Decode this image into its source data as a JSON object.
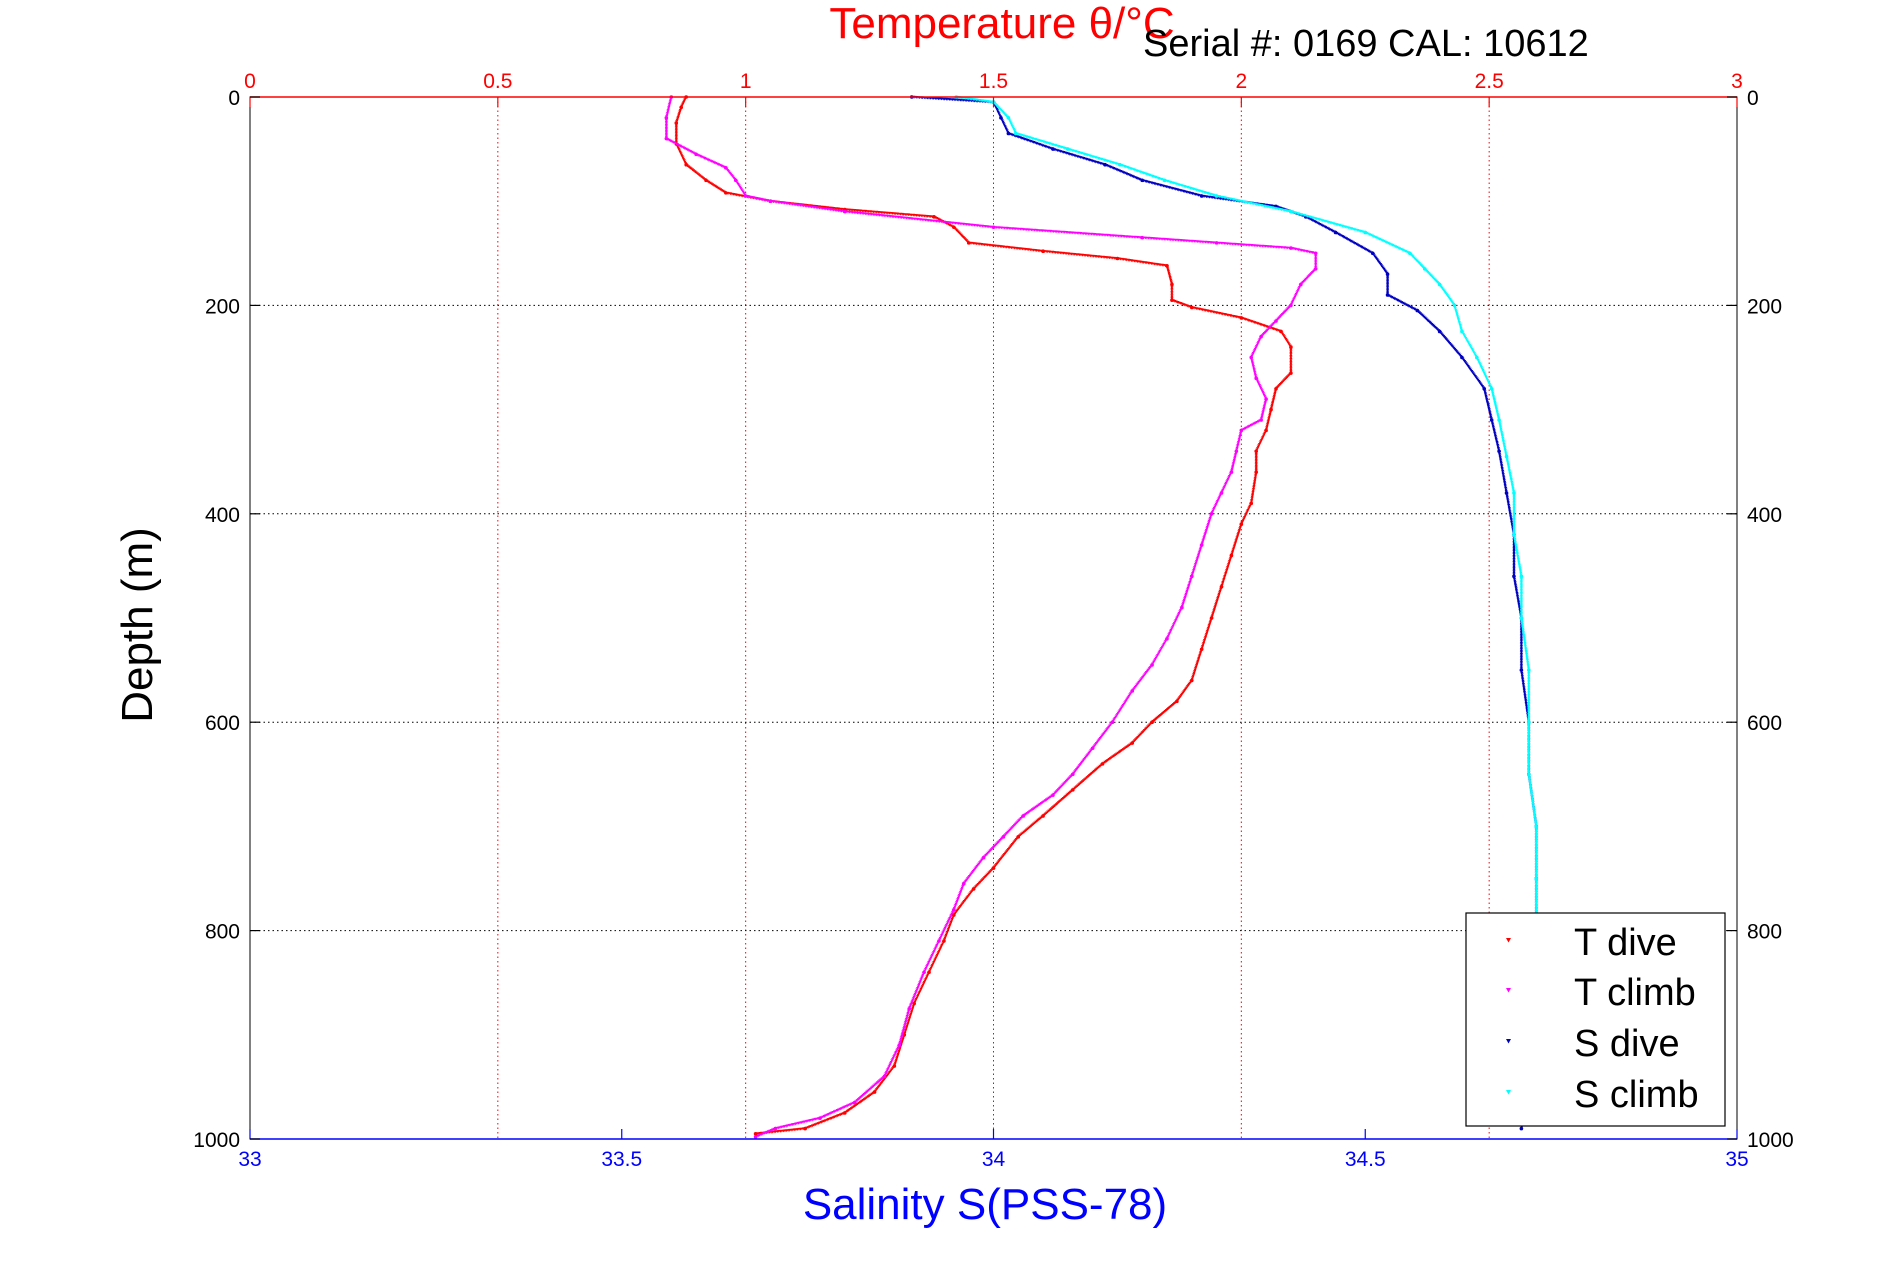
{
  "chart_data": {
    "type": "scatter",
    "annotation": "Serial #: 0169 CAL: 10612",
    "axes": {
      "temperature_top": {
        "label": "Temperature θ/°C",
        "range": [
          0,
          3
        ],
        "ticks": [
          0,
          0.5,
          1,
          1.5,
          2,
          2.5,
          3
        ],
        "tick_labels": [
          "0",
          "0.5",
          "1",
          "1.5",
          "2",
          "2.5",
          "3"
        ],
        "color": "#ff0000"
      },
      "salinity_bottom": {
        "label": "Salinity S(PSS-78)",
        "range": [
          33,
          35
        ],
        "ticks": [
          33,
          33.5,
          34,
          34.5,
          35
        ],
        "tick_labels": [
          "33",
          "33.5",
          "34",
          "34.5",
          "35"
        ],
        "color": "#0000ff"
      },
      "depth_left": {
        "label": "Depth (m)",
        "range": [
          0,
          1000
        ],
        "reversed": true,
        "ticks": [
          0,
          200,
          400,
          600,
          800,
          1000
        ],
        "tick_labels": [
          "0",
          "200",
          "400",
          "600",
          "800",
          "1000"
        ]
      },
      "depth_right": {
        "ticks": [
          0,
          200,
          400,
          600,
          800,
          1000
        ],
        "tick_labels": [
          "0",
          "200",
          "400",
          "600",
          "800",
          "1000"
        ]
      }
    },
    "grid": true,
    "legend": {
      "placement": "bottom-right"
    },
    "series": [
      {
        "name": "T dive",
        "axis": "temperature",
        "color": "#ff0000",
        "points": [
          [
            0.88,
            0
          ],
          [
            0.87,
            10
          ],
          [
            0.86,
            25
          ],
          [
            0.86,
            45
          ],
          [
            0.88,
            65
          ],
          [
            0.92,
            80
          ],
          [
            0.96,
            92
          ],
          [
            1.05,
            100
          ],
          [
            1.2,
            108
          ],
          [
            1.38,
            115
          ],
          [
            1.42,
            125
          ],
          [
            1.45,
            140
          ],
          [
            1.6,
            148
          ],
          [
            1.75,
            155
          ],
          [
            1.85,
            162
          ],
          [
            1.86,
            180
          ],
          [
            1.86,
            195
          ],
          [
            1.9,
            202
          ],
          [
            2.0,
            212
          ],
          [
            2.08,
            225
          ],
          [
            2.1,
            240
          ],
          [
            2.1,
            265
          ],
          [
            2.07,
            280
          ],
          [
            2.06,
            300
          ],
          [
            2.05,
            320
          ],
          [
            2.03,
            340
          ],
          [
            2.03,
            360
          ],
          [
            2.02,
            390
          ],
          [
            2.0,
            410
          ],
          [
            1.98,
            440
          ],
          [
            1.96,
            470
          ],
          [
            1.94,
            500
          ],
          [
            1.92,
            530
          ],
          [
            1.9,
            560
          ],
          [
            1.87,
            580
          ],
          [
            1.82,
            600
          ],
          [
            1.78,
            620
          ],
          [
            1.72,
            640
          ],
          [
            1.66,
            665
          ],
          [
            1.6,
            690
          ],
          [
            1.55,
            710
          ],
          [
            1.5,
            740
          ],
          [
            1.46,
            760
          ],
          [
            1.42,
            785
          ],
          [
            1.4,
            810
          ],
          [
            1.37,
            840
          ],
          [
            1.34,
            870
          ],
          [
            1.32,
            900
          ],
          [
            1.3,
            930
          ],
          [
            1.26,
            955
          ],
          [
            1.2,
            975
          ],
          [
            1.12,
            990
          ],
          [
            1.02,
            995
          ]
        ]
      },
      {
        "name": "T climb",
        "axis": "temperature",
        "color": "#ff00ff",
        "points": [
          [
            0.85,
            0
          ],
          [
            0.84,
            20
          ],
          [
            0.84,
            40
          ],
          [
            0.9,
            55
          ],
          [
            0.96,
            68
          ],
          [
            0.98,
            80
          ],
          [
            1.0,
            95
          ],
          [
            1.05,
            100
          ],
          [
            1.2,
            110
          ],
          [
            1.5,
            125
          ],
          [
            1.8,
            135
          ],
          [
            1.95,
            140
          ],
          [
            2.1,
            145
          ],
          [
            2.15,
            150
          ],
          [
            2.15,
            165
          ],
          [
            2.12,
            180
          ],
          [
            2.1,
            200
          ],
          [
            2.07,
            215
          ],
          [
            2.04,
            230
          ],
          [
            2.02,
            250
          ],
          [
            2.03,
            270
          ],
          [
            2.05,
            290
          ],
          [
            2.04,
            310
          ],
          [
            2.0,
            320
          ],
          [
            1.99,
            340
          ],
          [
            1.98,
            360
          ],
          [
            1.96,
            380
          ],
          [
            1.94,
            400
          ],
          [
            1.92,
            430
          ],
          [
            1.9,
            460
          ],
          [
            1.88,
            490
          ],
          [
            1.85,
            520
          ],
          [
            1.82,
            545
          ],
          [
            1.78,
            570
          ],
          [
            1.74,
            600
          ],
          [
            1.7,
            625
          ],
          [
            1.66,
            650
          ],
          [
            1.62,
            670
          ],
          [
            1.56,
            690
          ],
          [
            1.52,
            710
          ],
          [
            1.48,
            730
          ],
          [
            1.44,
            755
          ],
          [
            1.42,
            780
          ],
          [
            1.39,
            810
          ],
          [
            1.36,
            840
          ],
          [
            1.33,
            875
          ],
          [
            1.31,
            910
          ],
          [
            1.28,
            940
          ],
          [
            1.22,
            965
          ],
          [
            1.15,
            980
          ],
          [
            1.06,
            990
          ],
          [
            1.02,
            998
          ]
        ]
      },
      {
        "name": "S dive",
        "axis": "salinity",
        "color": "#0000c0",
        "points": [
          [
            33.89,
            0
          ],
          [
            34.0,
            5
          ],
          [
            34.01,
            20
          ],
          [
            34.02,
            35
          ],
          [
            34.08,
            50
          ],
          [
            34.15,
            65
          ],
          [
            34.2,
            80
          ],
          [
            34.28,
            95
          ],
          [
            34.38,
            105
          ],
          [
            34.42,
            115
          ],
          [
            34.46,
            130
          ],
          [
            34.51,
            150
          ],
          [
            34.53,
            170
          ],
          [
            34.53,
            190
          ],
          [
            34.57,
            205
          ],
          [
            34.6,
            225
          ],
          [
            34.63,
            250
          ],
          [
            34.66,
            280
          ],
          [
            34.67,
            310
          ],
          [
            34.68,
            340
          ],
          [
            34.69,
            380
          ],
          [
            34.7,
            420
          ],
          [
            34.7,
            460
          ],
          [
            34.71,
            500
          ],
          [
            34.71,
            550
          ],
          [
            34.72,
            600
          ],
          [
            34.72,
            650
          ],
          [
            34.73,
            700
          ],
          [
            34.73,
            750
          ],
          [
            34.73,
            800
          ],
          [
            34.73,
            850
          ],
          [
            34.72,
            900
          ],
          [
            34.72,
            950
          ],
          [
            34.71,
            990
          ]
        ]
      },
      {
        "name": "S climb",
        "axis": "salinity",
        "color": "#00ffff",
        "points": [
          [
            33.95,
            0
          ],
          [
            34.0,
            5
          ],
          [
            34.02,
            20
          ],
          [
            34.03,
            35
          ],
          [
            34.1,
            50
          ],
          [
            34.17,
            65
          ],
          [
            34.23,
            80
          ],
          [
            34.3,
            95
          ],
          [
            34.4,
            110
          ],
          [
            34.5,
            130
          ],
          [
            34.56,
            150
          ],
          [
            34.58,
            165
          ],
          [
            34.6,
            180
          ],
          [
            34.62,
            200
          ],
          [
            34.63,
            225
          ],
          [
            34.65,
            250
          ],
          [
            34.67,
            280
          ],
          [
            34.68,
            310
          ],
          [
            34.69,
            345
          ],
          [
            34.7,
            380
          ],
          [
            34.7,
            420
          ],
          [
            34.71,
            460
          ],
          [
            34.71,
            500
          ],
          [
            34.72,
            550
          ],
          [
            34.72,
            600
          ],
          [
            34.72,
            650
          ],
          [
            34.73,
            700
          ],
          [
            34.73,
            750
          ],
          [
            34.73,
            800
          ],
          [
            34.73,
            850
          ],
          [
            34.72,
            900
          ],
          [
            34.72,
            950
          ]
        ]
      }
    ]
  }
}
